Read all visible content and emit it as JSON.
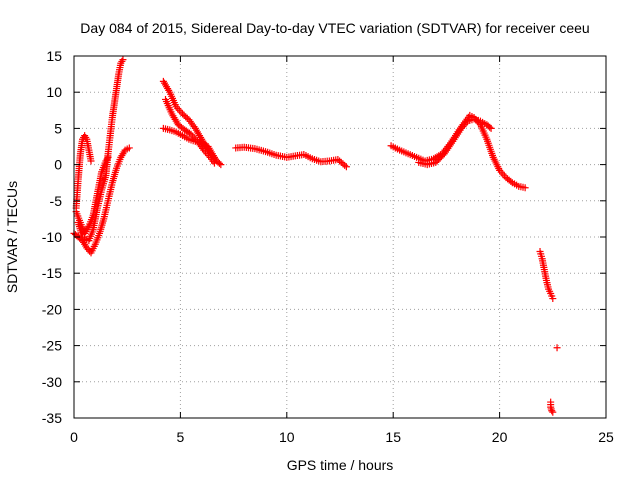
{
  "chart_data": {
    "type": "scatter",
    "title": "Day 084 of 2015, Sidereal Day-to-day VTEC variation (SDTVAR) for receiver ceeu",
    "xlabel": "GPS time / hours",
    "ylabel": "SDTVAR / TECUs",
    "xlim": [
      0,
      25
    ],
    "ylim": [
      -35,
      15
    ],
    "xticks": [
      0,
      5,
      10,
      15,
      20,
      25
    ],
    "yticks": [
      15,
      10,
      5,
      0,
      -5,
      -10,
      -15,
      -20,
      -25,
      -30,
      -35
    ],
    "grid": true,
    "marker": "+",
    "series": [
      {
        "name": "SDTVAR",
        "color": "#ff0000",
        "segments": [
          [
            [
              0.0,
              -9.5
            ],
            [
              0.2,
              -10.0
            ],
            [
              0.4,
              -10.5
            ],
            [
              0.6,
              -11.5
            ],
            [
              0.8,
              -12.2
            ],
            [
              1.0,
              -11.0
            ],
            [
              1.2,
              -9.5
            ],
            [
              1.4,
              -7.5
            ],
            [
              1.6,
              -5.0
            ],
            [
              1.8,
              -2.5
            ],
            [
              2.0,
              -0.5
            ],
            [
              2.2,
              1.0
            ],
            [
              2.4,
              2.0
            ],
            [
              2.6,
              2.3
            ]
          ],
          [
            [
              0.1,
              -6.0
            ],
            [
              0.2,
              -2.0
            ],
            [
              0.3,
              1.5
            ],
            [
              0.4,
              3.5
            ],
            [
              0.5,
              4.0
            ],
            [
              0.6,
              3.5
            ],
            [
              0.7,
              2.0
            ],
            [
              0.8,
              0.5
            ]
          ],
          [
            [
              0.1,
              -6.5
            ],
            [
              0.3,
              -8.0
            ],
            [
              0.5,
              -9.5
            ],
            [
              0.7,
              -8.5
            ],
            [
              0.9,
              -7.0
            ],
            [
              1.1,
              -4.0
            ],
            [
              1.3,
              -1.0
            ],
            [
              1.5,
              0.5
            ],
            [
              1.6,
              1.0
            ]
          ],
          [
            [
              0.2,
              -8.0
            ],
            [
              0.4,
              -10.0
            ],
            [
              0.7,
              -10.5
            ],
            [
              0.9,
              -9.0
            ],
            [
              1.1,
              -6.0
            ],
            [
              1.3,
              -3.5
            ],
            [
              1.5,
              -1.5
            ],
            [
              1.6,
              1.5
            ],
            [
              1.7,
              4.0
            ],
            [
              1.8,
              6.5
            ],
            [
              1.9,
              8.5
            ],
            [
              2.0,
              10.5
            ],
            [
              2.1,
              12.5
            ],
            [
              2.2,
              14.0
            ],
            [
              2.3,
              14.5
            ]
          ],
          [
            [
              4.2,
              5.0
            ],
            [
              4.5,
              4.8
            ],
            [
              4.8,
              4.5
            ],
            [
              5.1,
              4.0
            ],
            [
              5.4,
              3.5
            ],
            [
              5.7,
              3.2
            ],
            [
              6.0,
              3.0
            ],
            [
              6.3,
              2.5
            ],
            [
              6.5,
              1.5
            ],
            [
              6.7,
              0.5
            ],
            [
              6.9,
              0.0
            ]
          ],
          [
            [
              4.3,
              9.0
            ],
            [
              4.6,
              7.0
            ],
            [
              4.9,
              5.5
            ],
            [
              5.2,
              4.8
            ],
            [
              5.5,
              4.2
            ],
            [
              5.8,
              3.2
            ],
            [
              6.1,
              2.0
            ],
            [
              6.4,
              1.0
            ],
            [
              6.6,
              0.2
            ]
          ],
          [
            [
              4.2,
              11.5
            ],
            [
              4.5,
              10.0
            ],
            [
              4.8,
              8.0
            ],
            [
              5.1,
              7.0
            ],
            [
              5.4,
              6.2
            ],
            [
              5.7,
              5.0
            ],
            [
              6.0,
              3.5
            ],
            [
              6.3,
              2.0
            ],
            [
              6.6,
              0.8
            ]
          ],
          [
            [
              7.6,
              2.3
            ],
            [
              8.0,
              2.4
            ],
            [
              8.5,
              2.2
            ],
            [
              9.0,
              1.8
            ],
            [
              9.5,
              1.3
            ],
            [
              10.0,
              1.0
            ],
            [
              10.4,
              1.2
            ],
            [
              10.8,
              1.4
            ],
            [
              11.2,
              0.8
            ],
            [
              11.6,
              0.4
            ],
            [
              12.0,
              0.5
            ],
            [
              12.4,
              0.7
            ],
            [
              12.8,
              -0.3
            ]
          ],
          [
            [
              14.9,
              2.6
            ],
            [
              15.3,
              2.0
            ],
            [
              15.7,
              1.5
            ],
            [
              16.1,
              1.0
            ],
            [
              16.5,
              0.5
            ],
            [
              16.9,
              0.8
            ],
            [
              17.3,
              1.5
            ],
            [
              17.7,
              3.0
            ],
            [
              18.1,
              4.8
            ],
            [
              18.4,
              6.0
            ],
            [
              18.6,
              6.8
            ],
            [
              18.8,
              6.5
            ],
            [
              19.1,
              5.5
            ],
            [
              19.4,
              3.5
            ],
            [
              19.7,
              1.0
            ],
            [
              20.0,
              -0.8
            ],
            [
              20.3,
              -1.8
            ],
            [
              20.6,
              -2.5
            ],
            [
              20.9,
              -3.0
            ],
            [
              21.2,
              -3.2
            ]
          ],
          [
            [
              16.2,
              0.3
            ],
            [
              16.6,
              0.0
            ],
            [
              17.0,
              0.3
            ],
            [
              17.4,
              1.5
            ],
            [
              17.8,
              3.2
            ],
            [
              18.2,
              5.0
            ],
            [
              18.5,
              6.0
            ],
            [
              18.8,
              6.3
            ],
            [
              19.1,
              6.0
            ],
            [
              19.4,
              5.5
            ],
            [
              19.6,
              5.0
            ]
          ],
          [
            [
              21.9,
              -12.0
            ],
            [
              22.0,
              -13.0
            ],
            [
              22.1,
              -14.5
            ],
            [
              22.2,
              -16.0
            ],
            [
              22.3,
              -17.2
            ],
            [
              22.4,
              -17.8
            ],
            [
              22.5,
              -18.5
            ]
          ],
          [
            [
              22.7,
              -25.3
            ]
          ],
          [
            [
              22.4,
              -32.8
            ],
            [
              22.4,
              -33.5
            ],
            [
              22.45,
              -34.0
            ],
            [
              22.5,
              -34.2
            ]
          ]
        ]
      }
    ]
  }
}
